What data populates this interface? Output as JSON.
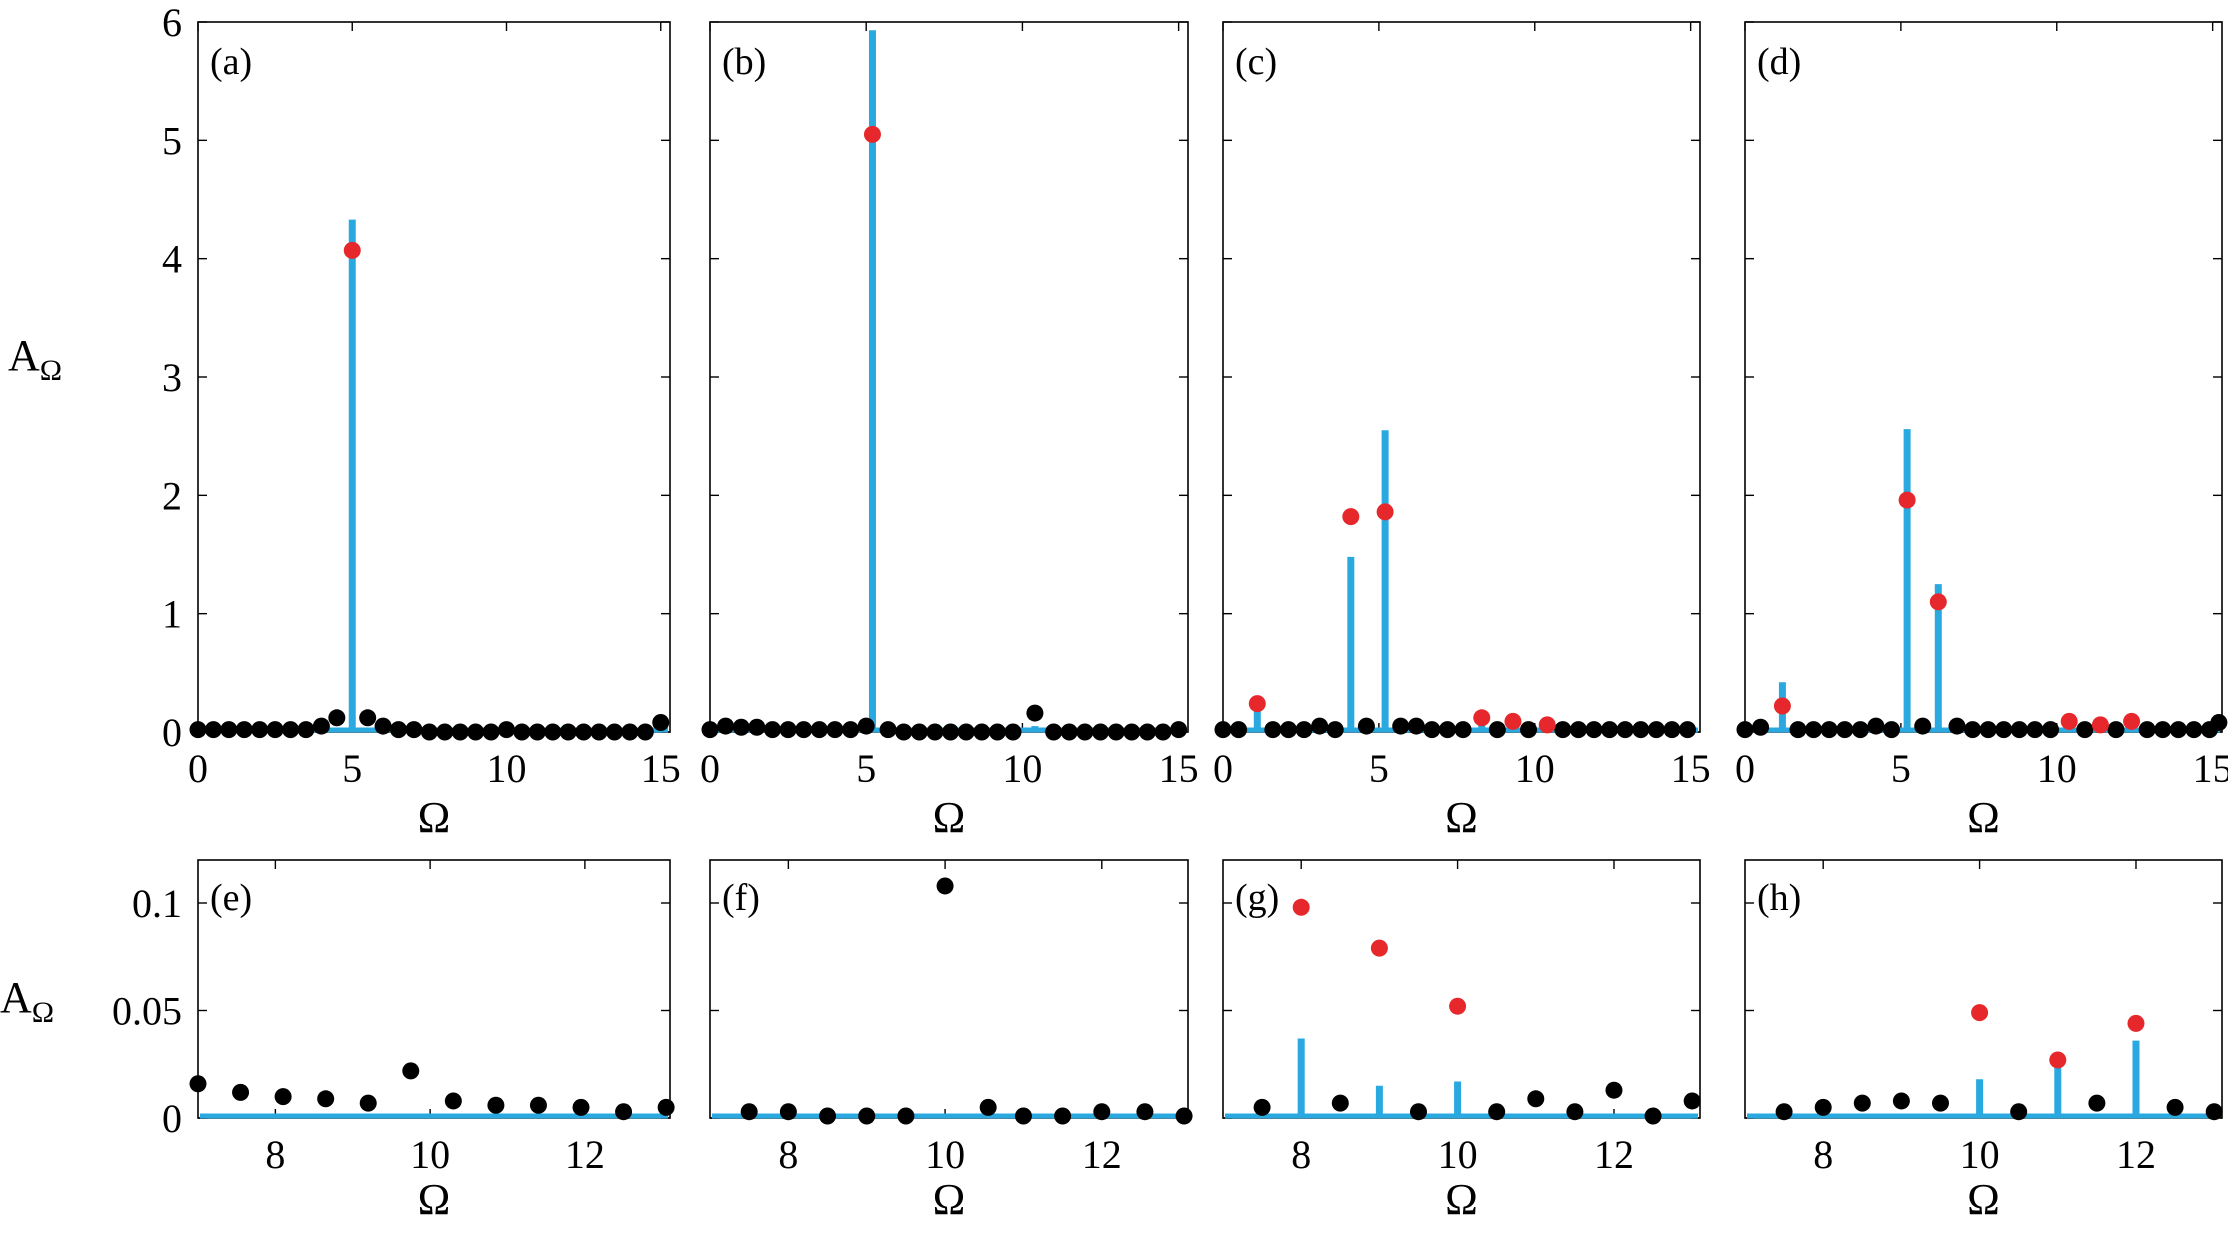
{
  "figure": {
    "colors": {
      "stem": "#29a9e0",
      "red_marker": "#e6282c",
      "black_marker": "#000000",
      "axis": "#000000"
    },
    "ylabel_top": "A",
    "ylabel_top_sub": "Ω",
    "ylabel_bottom": "A",
    "ylabel_bottom_sub": "Ω"
  },
  "chart_data": [
    {
      "type": "stem+scatter",
      "tag": "(a)",
      "xlabel": "Ω",
      "xlim": [
        0,
        15.3
      ],
      "ylim": [
        0,
        6
      ],
      "xticks": [
        0,
        5,
        10,
        15
      ],
      "yticks": [
        0,
        1,
        2,
        3,
        4,
        5,
        6
      ],
      "stems": [
        {
          "x": 5.0,
          "y": 4.33
        },
        {
          "x": 4.5,
          "y": 0.03
        },
        {
          "x": 6.0,
          "y": 0.03
        },
        {
          "x": 15.0,
          "y": 0.05
        }
      ],
      "red_points": [
        {
          "x": 5.0,
          "y": 4.07
        }
      ],
      "black_points": [
        {
          "x": 0.0,
          "y": 0.02
        },
        {
          "x": 0.5,
          "y": 0.02
        },
        {
          "x": 1.0,
          "y": 0.02
        },
        {
          "x": 1.5,
          "y": 0.02
        },
        {
          "x": 2.0,
          "y": 0.02
        },
        {
          "x": 2.5,
          "y": 0.02
        },
        {
          "x": 3.0,
          "y": 0.02
        },
        {
          "x": 3.5,
          "y": 0.02
        },
        {
          "x": 4.0,
          "y": 0.05
        },
        {
          "x": 4.5,
          "y": 0.12
        },
        {
          "x": 5.5,
          "y": 0.12
        },
        {
          "x": 6.0,
          "y": 0.05
        },
        {
          "x": 6.5,
          "y": 0.02
        },
        {
          "x": 7.0,
          "y": 0.02
        },
        {
          "x": 7.5,
          "y": 0.0
        },
        {
          "x": 8.0,
          "y": 0.0
        },
        {
          "x": 8.5,
          "y": 0.0
        },
        {
          "x": 9.0,
          "y": 0.0
        },
        {
          "x": 9.5,
          "y": 0.0
        },
        {
          "x": 10.0,
          "y": 0.02
        },
        {
          "x": 10.5,
          "y": 0.0
        },
        {
          "x": 11.0,
          "y": 0.0
        },
        {
          "x": 11.5,
          "y": 0.0
        },
        {
          "x": 12.0,
          "y": 0.0
        },
        {
          "x": 12.5,
          "y": 0.0
        },
        {
          "x": 13.0,
          "y": 0.0
        },
        {
          "x": 13.5,
          "y": 0.0
        },
        {
          "x": 14.0,
          "y": 0.0
        },
        {
          "x": 14.5,
          "y": 0.0
        },
        {
          "x": 15.0,
          "y": 0.08
        }
      ]
    },
    {
      "type": "stem+scatter",
      "tag": "(b)",
      "xlabel": "Ω",
      "xlim": [
        0,
        15.3
      ],
      "ylim": [
        0,
        6
      ],
      "xticks": [
        0,
        5,
        10,
        15
      ],
      "yticks": [
        0,
        1,
        2,
        3,
        4,
        5,
        6
      ],
      "stems": [
        {
          "x": 5.2,
          "y": 5.93
        },
        {
          "x": 10.4,
          "y": 0.05
        }
      ],
      "red_points": [
        {
          "x": 5.2,
          "y": 5.05
        }
      ],
      "black_points": [
        {
          "x": 0.0,
          "y": 0.02
        },
        {
          "x": 0.5,
          "y": 0.05
        },
        {
          "x": 1.0,
          "y": 0.04
        },
        {
          "x": 1.5,
          "y": 0.04
        },
        {
          "x": 2.0,
          "y": 0.02
        },
        {
          "x": 2.5,
          "y": 0.02
        },
        {
          "x": 3.0,
          "y": 0.02
        },
        {
          "x": 3.5,
          "y": 0.02
        },
        {
          "x": 4.0,
          "y": 0.02
        },
        {
          "x": 4.5,
          "y": 0.02
        },
        {
          "x": 5.0,
          "y": 0.05
        },
        {
          "x": 5.7,
          "y": 0.02
        },
        {
          "x": 6.2,
          "y": 0.0
        },
        {
          "x": 6.7,
          "y": 0.0
        },
        {
          "x": 7.2,
          "y": 0.0
        },
        {
          "x": 7.7,
          "y": 0.0
        },
        {
          "x": 8.2,
          "y": 0.0
        },
        {
          "x": 8.7,
          "y": 0.0
        },
        {
          "x": 9.2,
          "y": 0.0
        },
        {
          "x": 9.7,
          "y": 0.0
        },
        {
          "x": 10.4,
          "y": 0.16
        },
        {
          "x": 11.0,
          "y": 0.0
        },
        {
          "x": 11.5,
          "y": 0.0
        },
        {
          "x": 12.0,
          "y": 0.0
        },
        {
          "x": 12.5,
          "y": 0.0
        },
        {
          "x": 13.0,
          "y": 0.0
        },
        {
          "x": 13.5,
          "y": 0.0
        },
        {
          "x": 14.0,
          "y": 0.0
        },
        {
          "x": 14.5,
          "y": 0.0
        },
        {
          "x": 15.0,
          "y": 0.02
        }
      ]
    },
    {
      "type": "stem+scatter",
      "tag": "(c)",
      "xlabel": "Ω",
      "xlim": [
        0,
        15.3
      ],
      "ylim": [
        0,
        6
      ],
      "xticks": [
        0,
        5,
        10,
        15
      ],
      "yticks": [
        0,
        1,
        2,
        3,
        4,
        5,
        6
      ],
      "stems": [
        {
          "x": 1.1,
          "y": 0.3
        },
        {
          "x": 4.1,
          "y": 1.48
        },
        {
          "x": 5.2,
          "y": 2.55
        },
        {
          "x": 8.3,
          "y": 0.1
        },
        {
          "x": 9.3,
          "y": 0.08
        },
        {
          "x": 10.4,
          "y": 0.06
        }
      ],
      "red_points": [
        {
          "x": 1.1,
          "y": 0.24
        },
        {
          "x": 4.1,
          "y": 1.82
        },
        {
          "x": 5.2,
          "y": 1.86
        },
        {
          "x": 8.3,
          "y": 0.12
        },
        {
          "x": 9.3,
          "y": 0.09
        },
        {
          "x": 10.4,
          "y": 0.06
        }
      ],
      "black_points": [
        {
          "x": 0.0,
          "y": 0.02
        },
        {
          "x": 0.5,
          "y": 0.02
        },
        {
          "x": 1.6,
          "y": 0.02
        },
        {
          "x": 2.1,
          "y": 0.02
        },
        {
          "x": 2.6,
          "y": 0.02
        },
        {
          "x": 3.1,
          "y": 0.05
        },
        {
          "x": 3.6,
          "y": 0.02
        },
        {
          "x": 4.6,
          "y": 0.05
        },
        {
          "x": 5.7,
          "y": 0.05
        },
        {
          "x": 6.2,
          "y": 0.05
        },
        {
          "x": 6.7,
          "y": 0.02
        },
        {
          "x": 7.2,
          "y": 0.02
        },
        {
          "x": 7.7,
          "y": 0.02
        },
        {
          "x": 8.8,
          "y": 0.02
        },
        {
          "x": 9.8,
          "y": 0.02
        },
        {
          "x": 10.9,
          "y": 0.02
        },
        {
          "x": 11.4,
          "y": 0.02
        },
        {
          "x": 11.9,
          "y": 0.02
        },
        {
          "x": 12.4,
          "y": 0.02
        },
        {
          "x": 12.9,
          "y": 0.02
        },
        {
          "x": 13.4,
          "y": 0.02
        },
        {
          "x": 13.9,
          "y": 0.02
        },
        {
          "x": 14.4,
          "y": 0.02
        },
        {
          "x": 14.9,
          "y": 0.02
        }
      ]
    },
    {
      "type": "stem+scatter",
      "tag": "(d)",
      "xlabel": "Ω",
      "xlim": [
        0,
        15.3
      ],
      "ylim": [
        0,
        6
      ],
      "xticks": [
        0,
        5,
        10,
        15
      ],
      "yticks": [
        0,
        1,
        2,
        3,
        4,
        5,
        6
      ],
      "stems": [
        {
          "x": 1.2,
          "y": 0.42
        },
        {
          "x": 5.2,
          "y": 2.56
        },
        {
          "x": 6.2,
          "y": 1.25
        },
        {
          "x": 10.4,
          "y": 0.05
        },
        {
          "x": 11.4,
          "y": 0.05
        },
        {
          "x": 12.4,
          "y": 0.05
        }
      ],
      "red_points": [
        {
          "x": 1.2,
          "y": 0.22
        },
        {
          "x": 5.2,
          "y": 1.96
        },
        {
          "x": 6.2,
          "y": 1.1
        },
        {
          "x": 10.4,
          "y": 0.09
        },
        {
          "x": 11.4,
          "y": 0.06
        },
        {
          "x": 12.4,
          "y": 0.09
        }
      ],
      "black_points": [
        {
          "x": 0.0,
          "y": 0.02
        },
        {
          "x": 0.5,
          "y": 0.04
        },
        {
          "x": 1.7,
          "y": 0.02
        },
        {
          "x": 2.2,
          "y": 0.02
        },
        {
          "x": 2.7,
          "y": 0.02
        },
        {
          "x": 3.2,
          "y": 0.02
        },
        {
          "x": 3.7,
          "y": 0.02
        },
        {
          "x": 4.2,
          "y": 0.05
        },
        {
          "x": 4.7,
          "y": 0.02
        },
        {
          "x": 5.7,
          "y": 0.05
        },
        {
          "x": 6.8,
          "y": 0.05
        },
        {
          "x": 7.3,
          "y": 0.02
        },
        {
          "x": 7.8,
          "y": 0.02
        },
        {
          "x": 8.3,
          "y": 0.02
        },
        {
          "x": 8.8,
          "y": 0.02
        },
        {
          "x": 9.3,
          "y": 0.02
        },
        {
          "x": 9.8,
          "y": 0.02
        },
        {
          "x": 10.9,
          "y": 0.02
        },
        {
          "x": 11.9,
          "y": 0.02
        },
        {
          "x": 12.9,
          "y": 0.02
        },
        {
          "x": 13.4,
          "y": 0.02
        },
        {
          "x": 13.9,
          "y": 0.02
        },
        {
          "x": 14.4,
          "y": 0.02
        },
        {
          "x": 14.9,
          "y": 0.02
        },
        {
          "x": 15.2,
          "y": 0.08
        }
      ]
    },
    {
      "type": "stem+scatter",
      "tag": "(e)",
      "xlabel": "Ω",
      "xlim": [
        7,
        13.1
      ],
      "ylim": [
        0,
        0.12
      ],
      "xticks": [
        8,
        10,
        12
      ],
      "yticks": [
        0,
        0.05,
        0.1
      ],
      "stems": [],
      "red_points": [],
      "black_points": [
        {
          "x": 7.0,
          "y": 0.015
        },
        {
          "x": 7.55,
          "y": 0.011
        },
        {
          "x": 8.1,
          "y": 0.009
        },
        {
          "x": 8.65,
          "y": 0.008
        },
        {
          "x": 9.2,
          "y": 0.006
        },
        {
          "x": 9.75,
          "y": 0.021
        },
        {
          "x": 10.3,
          "y": 0.007
        },
        {
          "x": 10.85,
          "y": 0.005
        },
        {
          "x": 11.4,
          "y": 0.005
        },
        {
          "x": 11.95,
          "y": 0.004
        },
        {
          "x": 12.5,
          "y": 0.002
        },
        {
          "x": 13.05,
          "y": 0.004
        }
      ]
    },
    {
      "type": "stem+scatter",
      "tag": "(f)",
      "xlabel": "Ω",
      "xlim": [
        7,
        13.1
      ],
      "ylim": [
        0,
        0.12
      ],
      "xticks": [
        8,
        10,
        12
      ],
      "yticks": [
        0,
        0.05,
        0.1
      ],
      "stems": [],
      "red_points": [],
      "black_points": [
        {
          "x": 7.5,
          "y": 0.002
        },
        {
          "x": 8.0,
          "y": 0.002
        },
        {
          "x": 8.5,
          "y": 0.0
        },
        {
          "x": 9.0,
          "y": 0.0
        },
        {
          "x": 9.5,
          "y": 0.0
        },
        {
          "x": 10.0,
          "y": 0.107
        },
        {
          "x": 10.55,
          "y": 0.004
        },
        {
          "x": 11.0,
          "y": 0.0
        },
        {
          "x": 11.5,
          "y": 0.0
        },
        {
          "x": 12.0,
          "y": 0.002
        },
        {
          "x": 12.55,
          "y": 0.002
        },
        {
          "x": 13.05,
          "y": 0.0
        }
      ]
    },
    {
      "type": "stem+scatter",
      "tag": "(g)",
      "xlabel": "Ω",
      "xlim": [
        7,
        13.1
      ],
      "ylim": [
        0,
        0.12
      ],
      "xticks": [
        8,
        10,
        12
      ],
      "yticks": [
        0,
        0.05,
        0.1
      ],
      "stems": [
        {
          "x": 8.0,
          "y": 0.037
        },
        {
          "x": 9.0,
          "y": 0.015
        },
        {
          "x": 10.0,
          "y": 0.017
        }
      ],
      "red_points": [
        {
          "x": 8.0,
          "y": 0.098
        },
        {
          "x": 9.0,
          "y": 0.079
        },
        {
          "x": 10.0,
          "y": 0.052
        }
      ],
      "black_points": [
        {
          "x": 7.5,
          "y": 0.004
        },
        {
          "x": 8.5,
          "y": 0.006
        },
        {
          "x": 9.5,
          "y": 0.002
        },
        {
          "x": 10.5,
          "y": 0.002
        },
        {
          "x": 11.0,
          "y": 0.008
        },
        {
          "x": 11.5,
          "y": 0.002
        },
        {
          "x": 12.0,
          "y": 0.012
        },
        {
          "x": 12.5,
          "y": 0.0
        },
        {
          "x": 13.0,
          "y": 0.007
        }
      ]
    },
    {
      "type": "stem+scatter",
      "tag": "(h)",
      "xlabel": "Ω",
      "xlim": [
        7,
        13.1
      ],
      "ylim": [
        0,
        0.12
      ],
      "xticks": [
        8,
        10,
        12
      ],
      "yticks": [
        0,
        0.05,
        0.1
      ],
      "stems": [
        {
          "x": 10.0,
          "y": 0.018
        },
        {
          "x": 11.0,
          "y": 0.025
        },
        {
          "x": 12.0,
          "y": 0.036
        }
      ],
      "red_points": [
        {
          "x": 10.0,
          "y": 0.049
        },
        {
          "x": 11.0,
          "y": 0.027
        },
        {
          "x": 12.0,
          "y": 0.044
        }
      ],
      "black_points": [
        {
          "x": 7.5,
          "y": 0.002
        },
        {
          "x": 8.0,
          "y": 0.004
        },
        {
          "x": 8.5,
          "y": 0.006
        },
        {
          "x": 9.0,
          "y": 0.007
        },
        {
          "x": 9.5,
          "y": 0.006
        },
        {
          "x": 10.5,
          "y": 0.002
        },
        {
          "x": 11.5,
          "y": 0.006
        },
        {
          "x": 12.5,
          "y": 0.004
        },
        {
          "x": 13.0,
          "y": 0.002
        }
      ]
    }
  ]
}
